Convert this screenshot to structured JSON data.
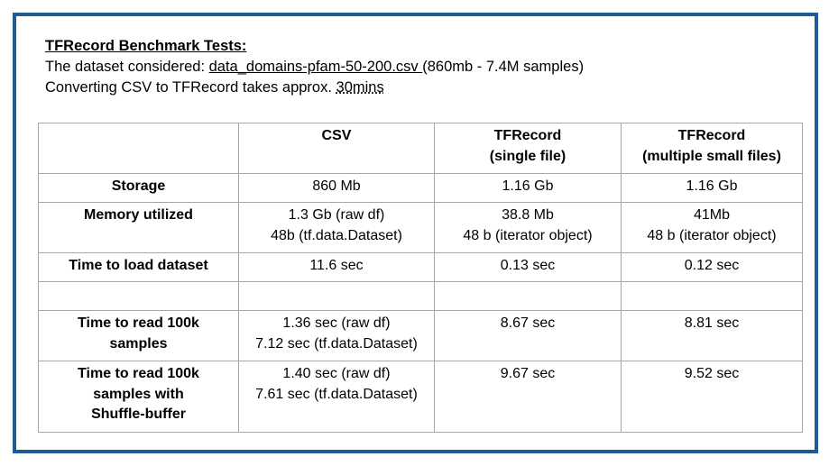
{
  "header": {
    "title": "TFRecord Benchmark Tests:",
    "dataset_prefix": "The dataset considered: ",
    "dataset_file": "data_domains-pfam-50-200.csv ",
    "dataset_suffix": "(860mb - 7.4M samples)",
    "convert_prefix": "Converting CSV to TFRecord takes approx. ",
    "convert_time": "30mins"
  },
  "table": {
    "columns": [
      {
        "line1": "",
        "line2": ""
      },
      {
        "line1": "CSV",
        "line2": ""
      },
      {
        "line1": "TFRecord",
        "line2": "(single file)"
      },
      {
        "line1": "TFRecord",
        "line2": "(multiple small files)"
      }
    ],
    "rows": {
      "storage": {
        "label": [
          "Storage"
        ],
        "csv": [
          "860 Mb"
        ],
        "tf_single": [
          "1.16 Gb"
        ],
        "tf_multi": [
          "1.16 Gb"
        ]
      },
      "memory": {
        "label": [
          "Memory utilized"
        ],
        "csv": [
          "1.3 Gb (raw df)",
          "48b (tf.data.Dataset)"
        ],
        "tf_single": [
          "38.8 Mb",
          "48 b (iterator object)"
        ],
        "tf_multi": [
          "41Mb",
          "48 b (iterator object)"
        ]
      },
      "load": {
        "label": [
          "Time to load dataset"
        ],
        "csv": [
          "11.6 sec"
        ],
        "tf_single": [
          "0.13 sec"
        ],
        "tf_multi": [
          "0.12 sec"
        ]
      },
      "read": {
        "label": [
          "Time to read 100k",
          "samples"
        ],
        "csv": [
          "1.36 sec (raw df)",
          "7.12 sec (tf.data.Dataset)"
        ],
        "tf_single": [
          "8.67 sec"
        ],
        "tf_multi": [
          "8.81 sec"
        ]
      },
      "shuffle": {
        "label": [
          "Time to read 100k",
          "samples with",
          "Shuffle-buffer"
        ],
        "csv": [
          "1.40 sec (raw df)",
          "7.61 sec (tf.data.Dataset)"
        ],
        "tf_single": [
          "9.67 sec"
        ],
        "tf_multi": [
          "9.52 sec"
        ]
      }
    }
  }
}
